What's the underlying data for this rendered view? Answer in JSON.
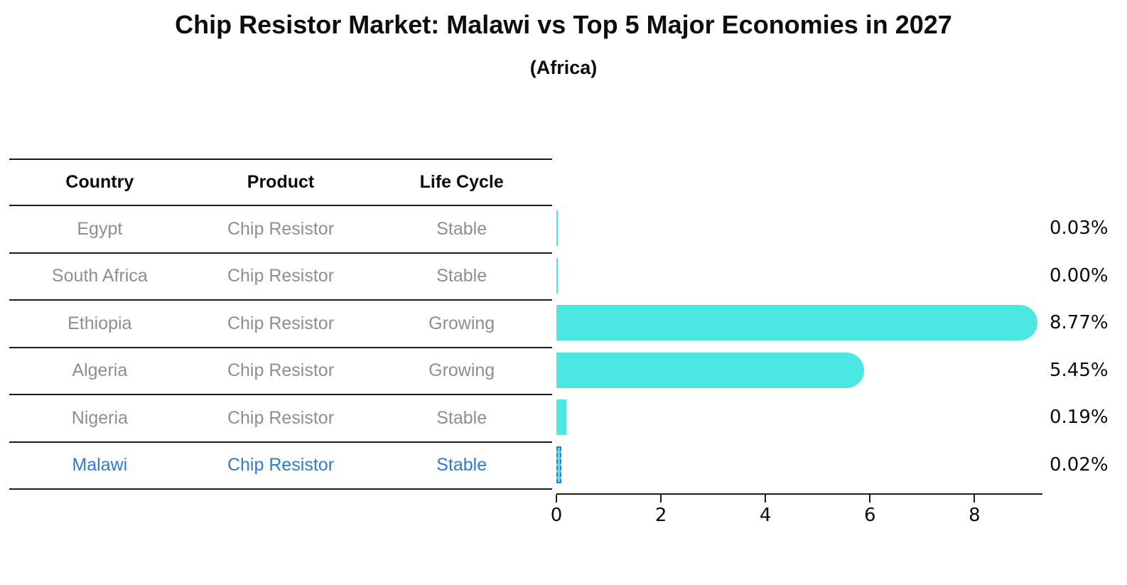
{
  "header": {
    "title": "Chip Resistor Market: Malawi vs Top 5 Major Economies in 2027",
    "subtitle": "(Africa)"
  },
  "table": {
    "columns": [
      "Country",
      "Product",
      "Life Cycle"
    ],
    "rows": [
      {
        "country": "Egypt",
        "product": "Chip Resistor",
        "life_cycle": "Stable",
        "highlight": false
      },
      {
        "country": "South Africa",
        "product": "Chip Resistor",
        "life_cycle": "Stable",
        "highlight": false
      },
      {
        "country": "Ethiopia",
        "product": "Chip Resistor",
        "life_cycle": "Growing",
        "highlight": false
      },
      {
        "country": "Algeria",
        "product": "Chip Resistor",
        "life_cycle": "Growing",
        "highlight": false
      },
      {
        "country": "Nigeria",
        "product": "Chip Resistor",
        "life_cycle": "Stable",
        "highlight": false
      },
      {
        "country": "Malawi",
        "product": "Chip Resistor",
        "life_cycle": "Stable",
        "highlight": true
      }
    ]
  },
  "chart_data": {
    "type": "bar",
    "orientation": "horizontal",
    "title": "Chip Resistor Market: Malawi vs Top 5 Major Economies in 2027",
    "subtitle": "(Africa)",
    "categories": [
      "Egypt",
      "South Africa",
      "Ethiopia",
      "Algeria",
      "Nigeria",
      "Malawi"
    ],
    "values": [
      0.03,
      0.0,
      8.77,
      5.45,
      0.19,
      0.02
    ],
    "value_labels": [
      "0.03%",
      "0.00%",
      "8.77%",
      "5.45%",
      "0.19%",
      "0.02%"
    ],
    "xlabel": "",
    "ylabel": "",
    "xlim": [
      0,
      9.3
    ],
    "x_ticks": [
      0,
      2,
      4,
      6,
      8
    ],
    "grid": false,
    "legend": false,
    "highlight_index": 5,
    "colors": {
      "bar": "#4ae7e3",
      "highlight_border": "#2e7bd2",
      "highlight_text": "#2e7bd2",
      "text": "#0d0d0d",
      "muted_text": "#8e8e8e",
      "axis": "#1a1a1a"
    }
  }
}
